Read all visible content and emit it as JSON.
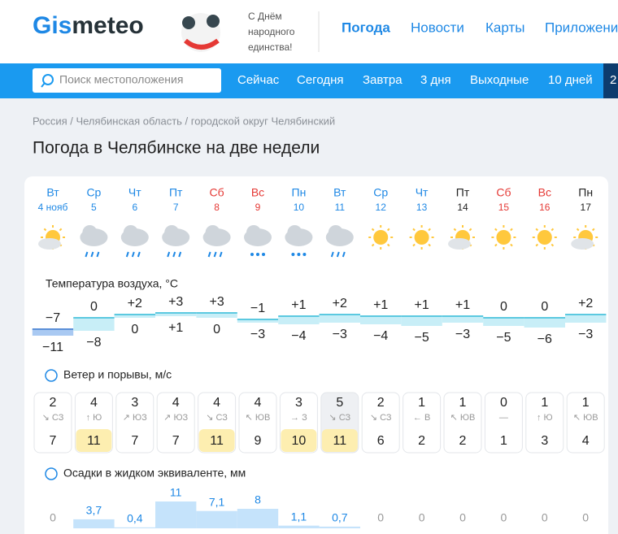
{
  "header": {
    "logo": {
      "part1": "Gis",
      "part2": "meteo"
    },
    "promo": [
      "С Днём",
      "народного",
      "единства!"
    ],
    "nav": [
      "Погода",
      "Новости",
      "Карты",
      "Приложени"
    ]
  },
  "search": {
    "placeholder": "Поиск местоположения",
    "tabs": [
      "Сейчас",
      "Сегодня",
      "Завтра",
      "3 дня",
      "Выходные",
      "10 дней",
      "2"
    ]
  },
  "breadcrumb": "Россия / Челябинская область / городской округ Челябинский",
  "title": "Погода в Челябинске на две недели",
  "days": [
    {
      "weekday": "Вт",
      "date": "4 нояб",
      "color": "#1e88e5"
    },
    {
      "weekday": "Ср",
      "date": "5",
      "color": "#1e88e5"
    },
    {
      "weekday": "Чт",
      "date": "6",
      "color": "#1e88e5"
    },
    {
      "weekday": "Пт",
      "date": "7",
      "color": "#1e88e5"
    },
    {
      "weekday": "Сб",
      "date": "8",
      "color": "#e53935"
    },
    {
      "weekday": "Вс",
      "date": "9",
      "color": "#e53935"
    },
    {
      "weekday": "Пн",
      "date": "10",
      "color": "#1e88e5"
    },
    {
      "weekday": "Вт",
      "date": "11",
      "color": "#1e88e5"
    },
    {
      "weekday": "Ср",
      "date": "12",
      "color": "#1e88e5"
    },
    {
      "weekday": "Чт",
      "date": "13",
      "color": "#1e88e5"
    },
    {
      "weekday": "Пт",
      "date": "14",
      "color": "#222222"
    },
    {
      "weekday": "Сб",
      "date": "15",
      "color": "#e53935"
    },
    {
      "weekday": "Вс",
      "date": "16",
      "color": "#e53935"
    },
    {
      "weekday": "Пн",
      "date": "17",
      "color": "#222222"
    }
  ],
  "temperature": {
    "label": "Температура воздуха, °C",
    "max": {
      "values": [
        -7,
        0,
        2,
        3,
        3,
        -1,
        1,
        2,
        1,
        1,
        1,
        0,
        0,
        2
      ],
      "value_labels": [
        "−7",
        "0",
        "+2",
        "+3",
        "+3",
        "−1",
        "+1",
        "+2",
        "+1",
        "+1",
        "+1",
        "0",
        "0",
        "+2"
      ]
    },
    "min": {
      "values": [
        -11,
        -8,
        0,
        1,
        0,
        -3,
        -4,
        -3,
        -4,
        -5,
        -3,
        -5,
        -6,
        -3
      ],
      "value_labels": [
        "−11",
        "−8",
        "0",
        "+1",
        "0",
        "−3",
        "−4",
        "−3",
        "−4",
        "−5",
        "−3",
        "−5",
        "−6",
        "−3"
      ]
    }
  },
  "wind": {
    "label": "Ветер и порывы, м/с",
    "speed": [
      2,
      4,
      3,
      4,
      4,
      4,
      3,
      5,
      2,
      1,
      1,
      0,
      1,
      1
    ],
    "direction": [
      "↘ СЗ",
      "↑ Ю",
      "↗ ЮЗ",
      "↗ ЮЗ",
      "↘ СЗ",
      "↖ ЮВ",
      "→ З",
      "↘ СЗ",
      "↘ СЗ",
      "← В",
      "↖ ЮВ",
      "—",
      "↑ Ю",
      "↖ ЮВ"
    ],
    "gusts": [
      7,
      11,
      7,
      7,
      11,
      9,
      10,
      11,
      6,
      2,
      2,
      1,
      3,
      4
    ]
  },
  "precipitation": {
    "label": "Осадки в жидком эквиваленте, мм",
    "values": [
      0,
      3.7,
      0.4,
      11,
      7.1,
      8,
      1.1,
      0.7,
      0,
      0,
      0,
      0,
      0,
      0
    ],
    "value_labels": [
      "0",
      "3,7",
      "0,4",
      "11",
      "7,1",
      "8",
      "1,1",
      "0,7",
      "0",
      "0",
      "0",
      "0",
      "0",
      "0"
    ]
  }
}
